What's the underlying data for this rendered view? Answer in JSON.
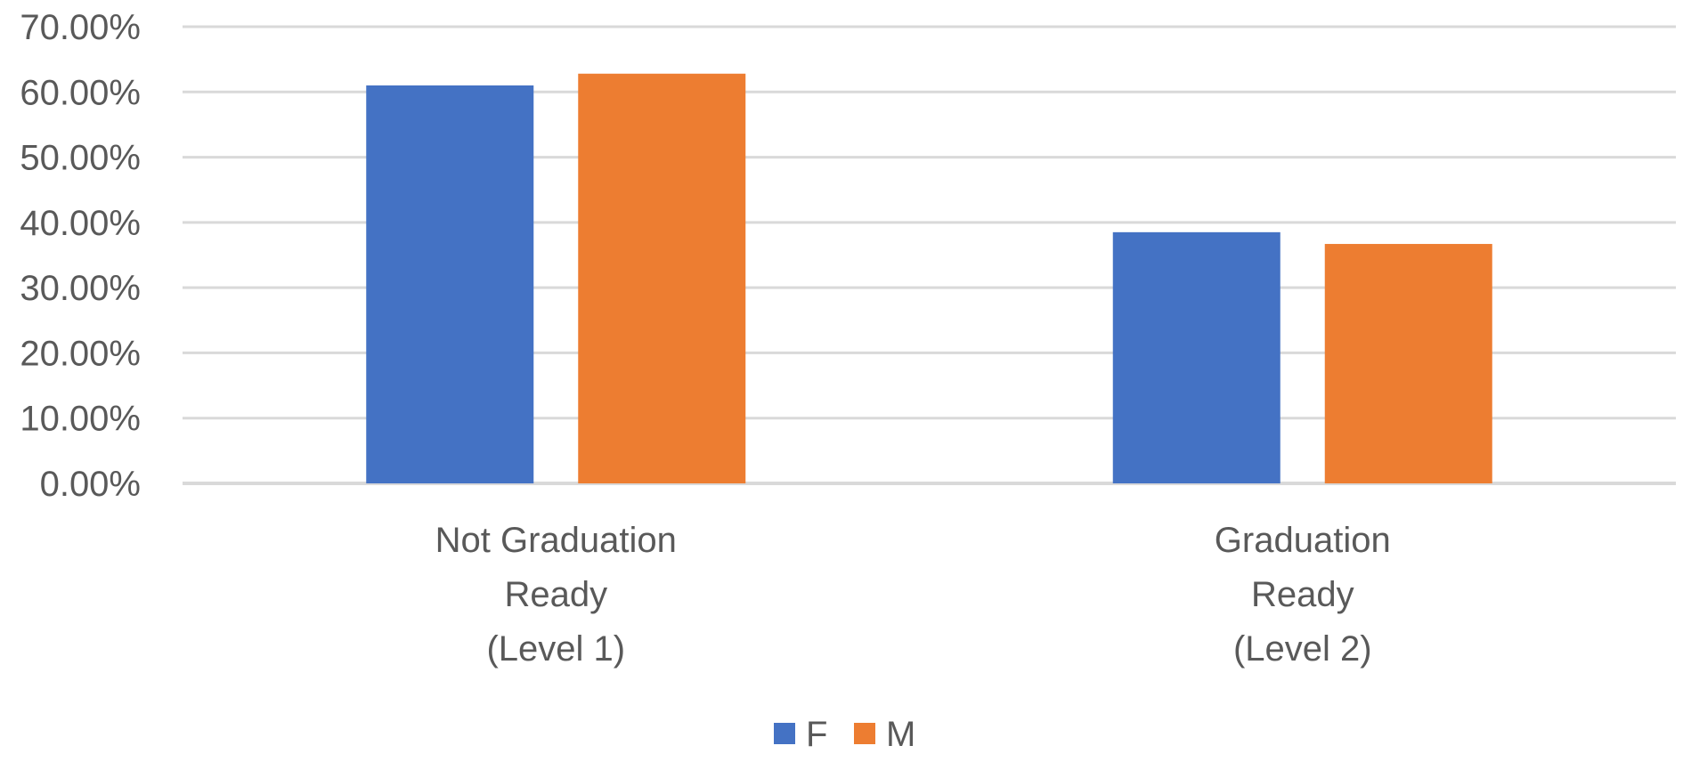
{
  "chart_data": {
    "type": "bar",
    "title": "",
    "xlabel": "",
    "ylabel": "",
    "categories": [
      [
        "Not Graduation",
        "Ready",
        "(Level 1)"
      ],
      [
        "Graduation",
        "Ready",
        "(Level 2)"
      ]
    ],
    "series": [
      {
        "name": "F",
        "color": "#4472C4",
        "values": [
          61.0,
          38.5
        ]
      },
      {
        "name": "M",
        "color": "#ED7D31",
        "values": [
          62.8,
          36.7
        ]
      }
    ],
    "ylim": [
      0,
      70
    ],
    "yticks": [
      {
        "value": 0,
        "label": "0.00%"
      },
      {
        "value": 10,
        "label": "10.00%"
      },
      {
        "value": 20,
        "label": "20.00%"
      },
      {
        "value": 30,
        "label": "30.00%"
      },
      {
        "value": 40,
        "label": "40.00%"
      },
      {
        "value": 50,
        "label": "50.00%"
      },
      {
        "value": 60,
        "label": "60.00%"
      },
      {
        "value": 70,
        "label": "70.00%"
      }
    ],
    "grid": true,
    "gridColor": "#D9D9D9",
    "textColor": "#595959",
    "legend": "bottom"
  }
}
